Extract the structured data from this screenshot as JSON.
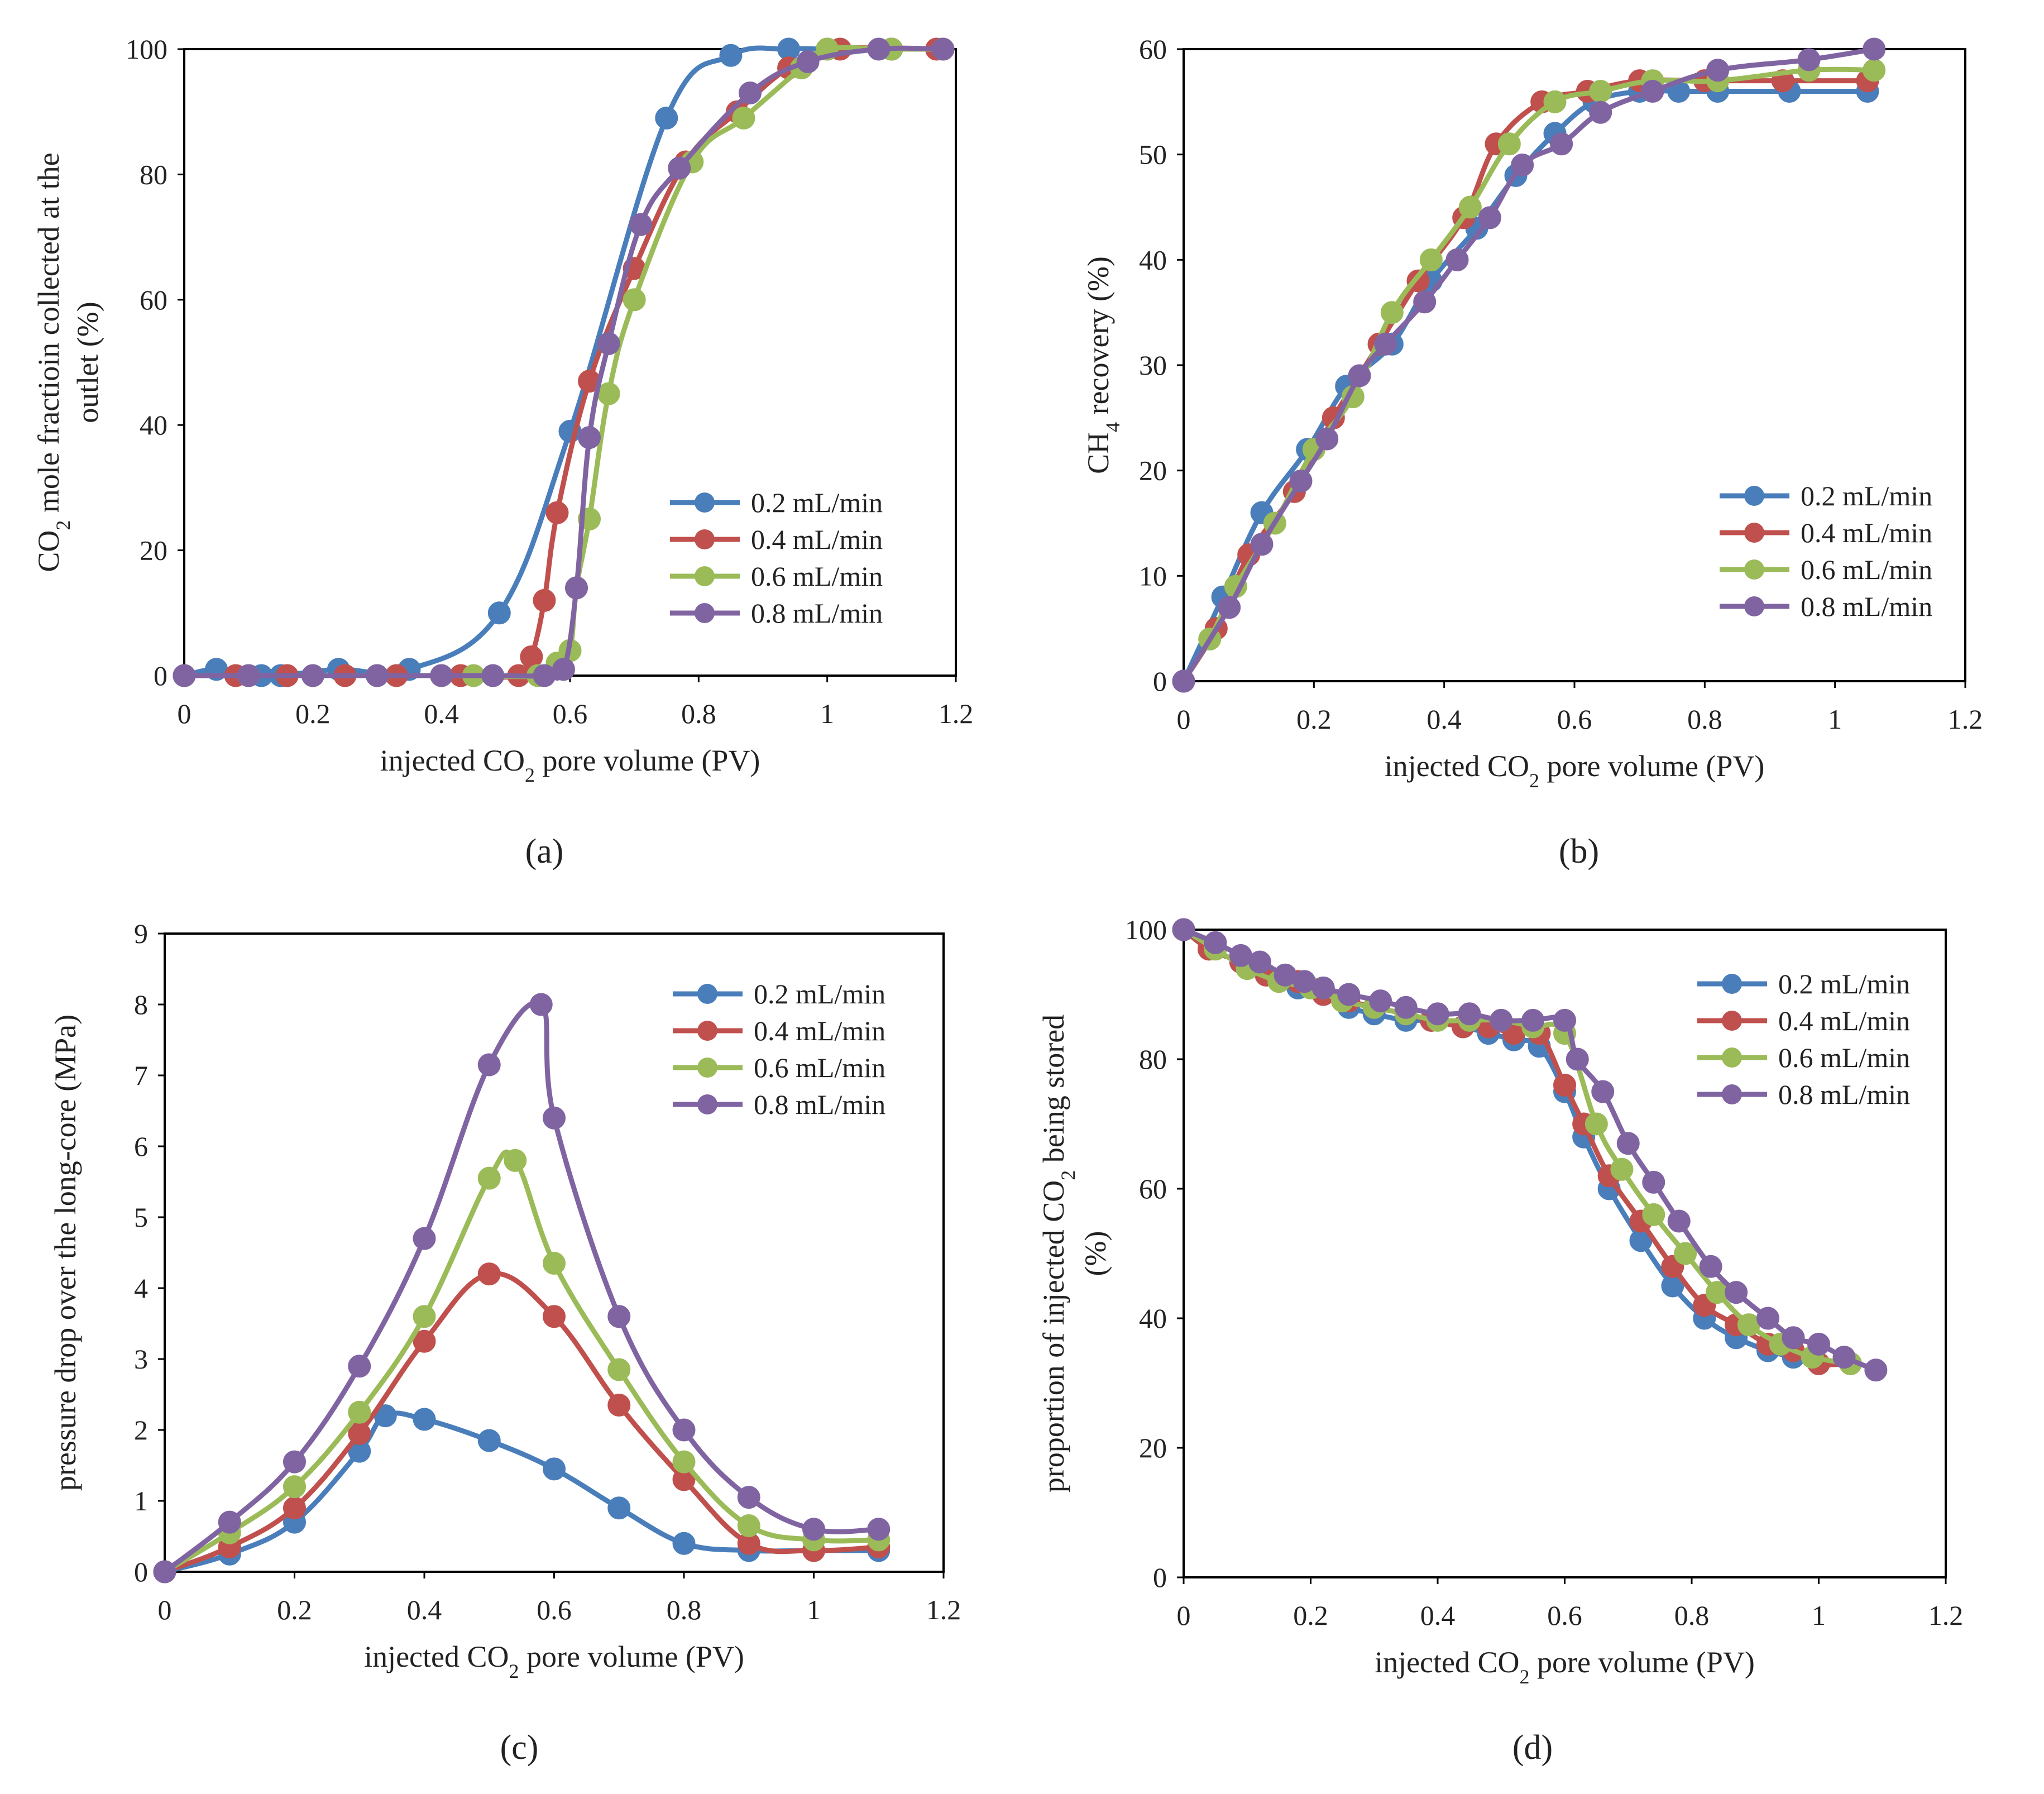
{
  "colors": {
    "axis": "#000000",
    "text": "#222222",
    "s02": "#4a7ebb",
    "s04": "#c0504d",
    "s06": "#9bbb59",
    "s08": "#8064a2"
  },
  "series_names": [
    "0.2 mL/min",
    "0.4 mL/min",
    "0.6 mL/min",
    "0.8 mL/min"
  ],
  "chart_data": [
    {
      "panel": "(a)",
      "type": "line",
      "xlabel": "injected CO₂ pore volume (PV)",
      "ylabel": "CO₂ mole fractioin collected at the outlet (%)",
      "ylabel_lines": [
        "CO₂ mole fractioin collected at the",
        "outlet (%)"
      ],
      "xlim": [
        0,
        1.2
      ],
      "ylim": [
        0,
        100
      ],
      "xticks": [
        "0",
        "0.2",
        "0.4",
        "0.6",
        "0.8",
        "1",
        "1.2"
      ],
      "yticks": [
        "0",
        "20",
        "40",
        "60",
        "80",
        "100"
      ],
      "legend": "bottom-right",
      "series": [
        {
          "name": "0.2 mL/min",
          "x": [
            0,
            0.05,
            0.12,
            0.15,
            0.24,
            0.35,
            0.49,
            0.6,
            0.75,
            0.85,
            0.94,
            1.0,
            1.1,
            1.18
          ],
          "y": [
            0,
            1,
            0,
            0,
            1,
            1,
            10,
            39,
            89,
            99,
            100,
            100,
            100,
            100
          ]
        },
        {
          "name": "0.4 mL/min",
          "x": [
            0,
            0.08,
            0.16,
            0.25,
            0.33,
            0.43,
            0.52,
            0.54,
            0.56,
            0.58,
            0.63,
            0.7,
            0.78,
            0.86,
            0.94,
            1.02,
            1.1,
            1.17
          ],
          "y": [
            0,
            0,
            0,
            0,
            0,
            0,
            0,
            3,
            12,
            26,
            47,
            65,
            82,
            90,
            97,
            100,
            100,
            100
          ]
        },
        {
          "name": "0.6 mL/min",
          "x": [
            0,
            0.1,
            0.2,
            0.3,
            0.4,
            0.45,
            0.55,
            0.58,
            0.6,
            0.61,
            0.63,
            0.66,
            0.7,
            0.79,
            0.87,
            0.96,
            1.0,
            1.1,
            1.18
          ],
          "y": [
            0,
            0,
            0,
            0,
            0,
            0,
            0,
            2,
            4,
            14,
            25,
            45,
            60,
            82,
            89,
            97,
            100,
            100,
            100
          ]
        },
        {
          "name": "0.8 mL/min",
          "x": [
            0,
            0.1,
            0.2,
            0.3,
            0.4,
            0.48,
            0.56,
            0.59,
            0.61,
            0.63,
            0.66,
            0.71,
            0.77,
            0.88,
            0.97,
            1.08,
            1.18
          ],
          "y": [
            0,
            0,
            0,
            0,
            0,
            0,
            0,
            1,
            14,
            38,
            53,
            72,
            81,
            93,
            98,
            100,
            100
          ]
        }
      ]
    },
    {
      "panel": "(b)",
      "type": "line",
      "xlabel": "injected CO₂ pore volume (PV)",
      "ylabel": "CH₄ recovery (%)",
      "ylabel_lines": [
        "CH₄ recovery (%)"
      ],
      "xlim": [
        0,
        1.2
      ],
      "ylim": [
        0,
        60
      ],
      "xticks": [
        "0",
        "0.2",
        "0.4",
        "0.6",
        "0.8",
        "1",
        "1.2"
      ],
      "yticks": [
        "0",
        "10",
        "20",
        "30",
        "40",
        "50",
        "60"
      ],
      "legend": "center-right",
      "series": [
        {
          "name": "0.2 mL/min",
          "x": [
            0,
            0.06,
            0.12,
            0.19,
            0.25,
            0.32,
            0.38,
            0.45,
            0.51,
            0.57,
            0.63,
            0.7,
            0.76,
            0.82,
            0.93,
            1.05
          ],
          "y": [
            0,
            8,
            16,
            22,
            28,
            32,
            38,
            43,
            48,
            52,
            55,
            56,
            56,
            56,
            56,
            56
          ]
        },
        {
          "name": "0.4 mL/min",
          "x": [
            0,
            0.05,
            0.1,
            0.17,
            0.23,
            0.3,
            0.36,
            0.43,
            0.48,
            0.55,
            0.62,
            0.7,
            0.8,
            0.92,
            1.05
          ],
          "y": [
            0,
            5,
            12,
            18,
            25,
            32,
            38,
            44,
            51,
            55,
            56,
            57,
            57,
            57,
            57
          ]
        },
        {
          "name": "0.6 mL/min",
          "x": [
            0,
            0.04,
            0.08,
            0.14,
            0.2,
            0.26,
            0.32,
            0.38,
            0.44,
            0.5,
            0.57,
            0.64,
            0.72,
            0.82,
            0.96,
            1.06
          ],
          "y": [
            0,
            4,
            9,
            15,
            22,
            27,
            35,
            40,
            45,
            51,
            55,
            56,
            57,
            57,
            58,
            58
          ]
        },
        {
          "name": "0.8 mL/min",
          "x": [
            0,
            0.07,
            0.12,
            0.18,
            0.22,
            0.27,
            0.31,
            0.37,
            0.42,
            0.47,
            0.52,
            0.58,
            0.64,
            0.72,
            0.82,
            0.96,
            1.06
          ],
          "y": [
            0,
            7,
            13,
            19,
            23,
            29,
            32,
            36,
            40,
            44,
            49,
            51,
            54,
            56,
            58,
            59,
            60
          ]
        }
      ]
    },
    {
      "panel": "(c)",
      "type": "line",
      "xlabel": "injected CO₂ pore volume (PV)",
      "ylabel": "pressure  drop over the long-core (MPa)",
      "ylabel_lines": [
        "pressure  drop over the long-core (MPa)"
      ],
      "xlim": [
        0,
        1.2
      ],
      "ylim": [
        0,
        9
      ],
      "xticks": [
        "0",
        "0.2",
        "0.4",
        "0.6",
        "0.8",
        "1",
        "1.2"
      ],
      "yticks": [
        "0",
        "1",
        "2",
        "3",
        "4",
        "5",
        "6",
        "7",
        "8",
        "9"
      ],
      "legend": "top-right",
      "series": [
        {
          "name": "0.2 mL/min",
          "x": [
            0,
            0.1,
            0.2,
            0.3,
            0.34,
            0.4,
            0.5,
            0.6,
            0.7,
            0.8,
            0.9,
            1.0,
            1.1
          ],
          "y": [
            0,
            0.25,
            0.7,
            1.7,
            2.2,
            2.15,
            1.85,
            1.45,
            0.9,
            0.4,
            0.3,
            0.3,
            0.3
          ]
        },
        {
          "name": "0.4 mL/min",
          "x": [
            0,
            0.1,
            0.2,
            0.3,
            0.4,
            0.5,
            0.6,
            0.7,
            0.8,
            0.9,
            1.0,
            1.1
          ],
          "y": [
            0,
            0.35,
            0.9,
            1.95,
            3.25,
            4.2,
            3.6,
            2.35,
            1.3,
            0.4,
            0.3,
            0.35
          ]
        },
        {
          "name": "0.6 mL/min",
          "x": [
            0,
            0.1,
            0.2,
            0.3,
            0.4,
            0.5,
            0.54,
            0.6,
            0.7,
            0.8,
            0.9,
            1.0,
            1.1
          ],
          "y": [
            0,
            0.55,
            1.2,
            2.25,
            3.6,
            5.55,
            5.8,
            4.35,
            2.85,
            1.55,
            0.65,
            0.45,
            0.45
          ]
        },
        {
          "name": "0.8 mL/min",
          "x": [
            0,
            0.1,
            0.2,
            0.3,
            0.4,
            0.5,
            0.58,
            0.6,
            0.7,
            0.8,
            0.9,
            1.0,
            1.1
          ],
          "y": [
            0,
            0.7,
            1.55,
            2.9,
            4.7,
            7.15,
            8.0,
            6.4,
            3.6,
            2.0,
            1.05,
            0.6,
            0.6
          ]
        }
      ]
    },
    {
      "panel": "(d)",
      "type": "line",
      "xlabel": "injected CO₂ pore volume  (PV)",
      "ylabel": "proportion of injected CO₂ being stored (%)",
      "ylabel_lines": [
        "proportion of injected CO₂ being stored",
        "(%)"
      ],
      "xlim": [
        0,
        1.2
      ],
      "ylim": [
        0,
        100
      ],
      "xticks": [
        "0",
        "0.2",
        "0.4",
        "0.6",
        "0.8",
        "1",
        "1.2"
      ],
      "yticks": [
        "0",
        "20",
        "40",
        "60",
        "80",
        "100"
      ],
      "legend": "top-right",
      "series": [
        {
          "name": "0.2 mL/min",
          "x": [
            0,
            0.04,
            0.09,
            0.13,
            0.18,
            0.22,
            0.26,
            0.3,
            0.35,
            0.39,
            0.44,
            0.48,
            0.52,
            0.56,
            0.6,
            0.63,
            0.67,
            0.72,
            0.77,
            0.82,
            0.87,
            0.92,
            0.96,
            1.0,
            1.05
          ],
          "y": [
            100,
            97,
            95,
            93,
            91,
            90,
            88,
            87,
            86,
            86,
            85,
            84,
            83,
            82,
            75,
            68,
            60,
            52,
            45,
            40,
            37,
            35,
            34,
            33,
            33
          ]
        },
        {
          "name": "0.4 mL/min",
          "x": [
            0,
            0.04,
            0.09,
            0.13,
            0.18,
            0.22,
            0.26,
            0.3,
            0.35,
            0.39,
            0.44,
            0.48,
            0.52,
            0.56,
            0.6,
            0.63,
            0.67,
            0.72,
            0.77,
            0.82,
            0.87,
            0.92,
            0.96,
            1.0,
            1.05
          ],
          "y": [
            100,
            97,
            95,
            93,
            92,
            90,
            89,
            88,
            87,
            86,
            85,
            85,
            84,
            84,
            76,
            70,
            62,
            55,
            48,
            42,
            39,
            36,
            35,
            33,
            33
          ]
        },
        {
          "name": "0.6 mL/min",
          "x": [
            0,
            0.05,
            0.1,
            0.15,
            0.2,
            0.25,
            0.3,
            0.35,
            0.4,
            0.45,
            0.5,
            0.55,
            0.6,
            0.65,
            0.69,
            0.74,
            0.79,
            0.84,
            0.89,
            0.94,
            0.99,
            1.05
          ],
          "y": [
            100,
            97,
            94,
            92,
            91,
            89,
            88,
            87,
            86,
            86,
            86,
            85,
            84,
            70,
            63,
            56,
            50,
            44,
            39,
            36,
            34,
            33
          ]
        },
        {
          "name": "0.8 mL/min",
          "x": [
            0,
            0.05,
            0.09,
            0.12,
            0.16,
            0.19,
            0.22,
            0.26,
            0.31,
            0.35,
            0.4,
            0.45,
            0.5,
            0.55,
            0.6,
            0.62,
            0.66,
            0.7,
            0.74,
            0.78,
            0.83,
            0.87,
            0.92,
            0.96,
            1.0,
            1.04,
            1.09
          ],
          "y": [
            100,
            98,
            96,
            95,
            93,
            92,
            91,
            90,
            89,
            88,
            87,
            87,
            86,
            86,
            86,
            80,
            75,
            67,
            61,
            55,
            48,
            44,
            40,
            37,
            36,
            34,
            32
          ]
        }
      ]
    }
  ]
}
